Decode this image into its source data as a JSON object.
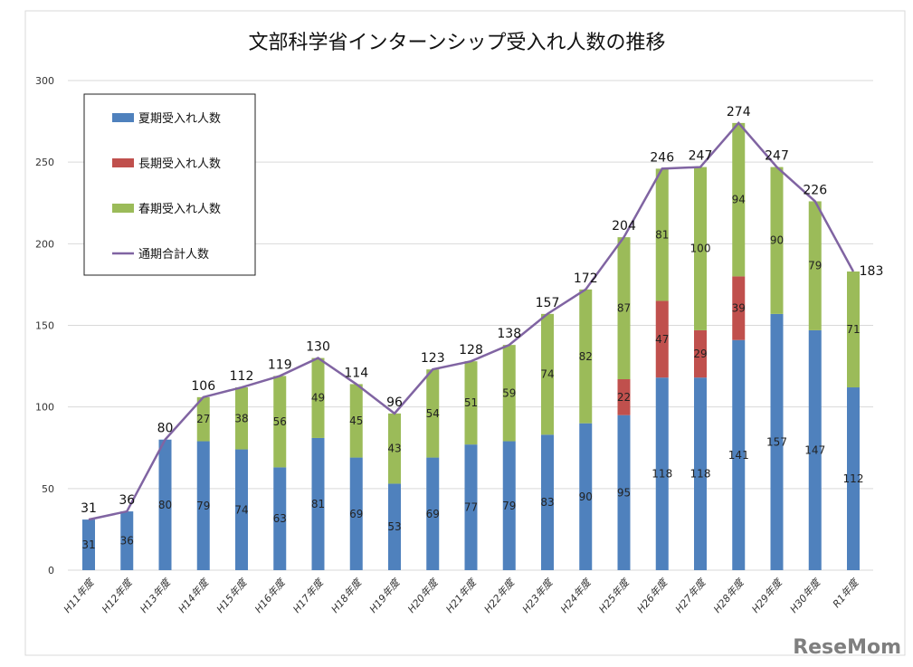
{
  "chart_data": {
    "type": "bar",
    "stacked": true,
    "title": "文部科学省インターンシップ受入れ人数の推移",
    "xlabel": "",
    "ylabel": "",
    "ylim": [
      0,
      300
    ],
    "yticks": [
      0,
      50,
      100,
      150,
      200,
      250,
      300
    ],
    "grid": true,
    "legend_position": "top-left",
    "categories": [
      "H11年度",
      "H12年度",
      "H13年度",
      "H14年度",
      "H15年度",
      "H16年度",
      "H17年度",
      "H18年度",
      "H19年度",
      "H20年度",
      "H21年度",
      "H22年度",
      "H23年度",
      "H24年度",
      "H25年度",
      "H26年度",
      "H27年度",
      "H28年度",
      "H29年度",
      "H30年度",
      "R1年度"
    ],
    "series": [
      {
        "name": "夏期受入れ人数",
        "type": "bar",
        "color": "#4f81bd",
        "values": [
          31,
          36,
          80,
          79,
          74,
          63,
          81,
          69,
          53,
          69,
          77,
          79,
          83,
          90,
          95,
          118,
          118,
          141,
          157,
          147,
          112
        ]
      },
      {
        "name": "長期受入れ人数",
        "type": "bar",
        "color": "#c0504d",
        "values": [
          0,
          0,
          0,
          0,
          0,
          0,
          0,
          0,
          0,
          0,
          0,
          0,
          0,
          0,
          22,
          47,
          29,
          39,
          0,
          0,
          0
        ]
      },
      {
        "name": "春期受入れ人数",
        "type": "bar",
        "color": "#9bbb59",
        "values": [
          0,
          0,
          0,
          27,
          38,
          56,
          49,
          45,
          43,
          54,
          51,
          59,
          74,
          82,
          87,
          81,
          100,
          94,
          90,
          79,
          71
        ]
      },
      {
        "name": "通期合計人数",
        "type": "line",
        "color": "#8064a2",
        "values": [
          31,
          36,
          80,
          106,
          112,
          119,
          130,
          114,
          96,
          123,
          128,
          138,
          157,
          172,
          204,
          246,
          247,
          274,
          247,
          226,
          183
        ]
      }
    ]
  },
  "watermark": "ReseMom"
}
